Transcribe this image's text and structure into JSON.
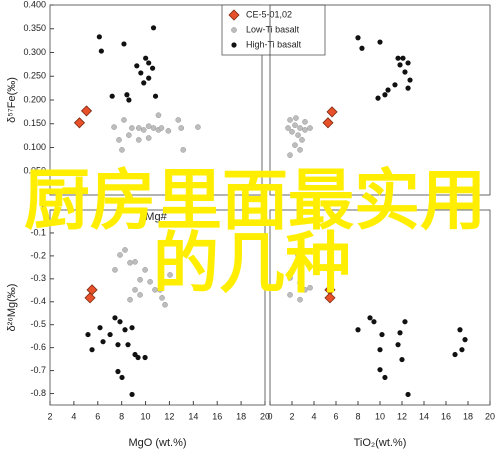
{
  "chart_data": [
    {
      "type": "scatter",
      "ylabel": "δ⁵⁷Fe(‰)",
      "xlabel": "Mg#",
      "xlim": [
        2,
        20
      ],
      "ylim": [
        0,
        0.4
      ],
      "yticks": [
        {
          "value": 0.4,
          "label": "0.400"
        },
        {
          "value": 0.35,
          "label": "0.350"
        },
        {
          "value": 0.3,
          "label": "0.300"
        },
        {
          "value": 0.25,
          "label": "0.250"
        },
        {
          "value": 0.2,
          "label": "0.200"
        },
        {
          "value": 0.15,
          "label": "0.150"
        },
        {
          "value": 0.1,
          "label": "0.100"
        },
        {
          "value": 0.05,
          "label": "0.050"
        }
      ],
      "legend": "upper right",
      "series": [
        {
          "name": "CE-5-01,02",
          "color": "#e8502a",
          "marker": "diamond",
          "x": [
            5.1,
            4.5
          ],
          "values": [
            0.177,
            0.152
          ]
        },
        {
          "name": "Low-Ti basalt",
          "color": "#bdbdbd",
          "marker": "circle",
          "x": [
            7.44,
            8.28,
            8.95,
            9.54,
            9.96,
            10.38,
            10.79,
            11.21,
            11.46,
            12.05,
            12.89,
            13.14,
            14.56,
            13.31,
            7.86,
            9.54,
            8.11,
            11.21,
            8.7,
            10.38
          ],
          "values": [
            0.143,
            0.158,
            0.141,
            0.141,
            0.137,
            0.145,
            0.141,
            0.137,
            0.141,
            0.135,
            0.158,
            0.141,
            0.143,
            0.095,
            0.116,
            0.116,
            0.095,
            0.168,
            0.126,
            0.12
          ]
        },
        {
          "name": "High-Ti basalt",
          "color": "#111111",
          "marker": "circle",
          "x": [
            6.19,
            6.36,
            8.28,
            10.79,
            10.12,
            10.38,
            9.37,
            9.71,
            10.38,
            10.71,
            9.96,
            8.53,
            8.7,
            10.96,
            7.28
          ],
          "values": [
            0.333,
            0.303,
            0.318,
            0.352,
            0.288,
            0.278,
            0.272,
            0.257,
            0.246,
            0.267,
            0.236,
            0.211,
            0.2,
            0.208,
            0.208
          ]
        }
      ]
    },
    {
      "type": "scatter",
      "xlim": [
        0,
        20
      ],
      "ylim": [
        0,
        0.4
      ],
      "series": [
        {
          "color": "#e8502a",
          "marker": "diamond",
          "x": [
            5.64,
            5.27
          ],
          "values": [
            0.175,
            0.152
          ]
        },
        {
          "color": "#bdbdbd",
          "marker": "circle",
          "x": [
            1.82,
            2.27,
            2.73,
            3.18,
            2.0,
            2.55,
            1.64,
            2.91,
            2.27,
            2.73,
            1.82,
            3.64,
            2.36,
            3.18
          ],
          "values": [
            0.158,
            0.147,
            0.141,
            0.137,
            0.133,
            0.126,
            0.141,
            0.116,
            0.105,
            0.095,
            0.084,
            0.141,
            0.162,
            0.154
          ]
        },
        {
          "color": "#111111",
          "marker": "circle",
          "x": [
            8.0,
            8.36,
            10.0,
            11.64,
            12.09,
            11.82,
            12.55,
            12.27,
            12.73,
            12.55,
            11.36,
            10.73,
            10.45,
            9.82
          ],
          "values": [
            0.331,
            0.309,
            0.322,
            0.288,
            0.288,
            0.274,
            0.278,
            0.259,
            0.242,
            0.225,
            0.232,
            0.221,
            0.211,
            0.204
          ]
        }
      ]
    },
    {
      "type": "scatter",
      "ylabel": "δ²⁶Mg(‰)",
      "xlabel": "MgO (wt.%)",
      "xlim": [
        2,
        20
      ],
      "ylim": [
        -0.85,
        0
      ],
      "xticks": [
        2,
        4,
        6,
        8,
        10,
        12,
        14,
        16,
        18,
        20
      ],
      "yticks": [
        0,
        -0.1,
        -0.2,
        -0.3,
        -0.4,
        -0.5,
        -0.6,
        -0.7,
        -0.8
      ],
      "series": [
        {
          "color": "#e8502a",
          "marker": "diamond",
          "x": [
            5.52,
            5.35
          ],
          "values": [
            -0.348,
            -0.383
          ]
        },
        {
          "color": "#bdbdbd",
          "marker": "circle",
          "x": [
            7.86,
            8.28,
            8.7,
            9.12,
            9.54,
            9.96,
            10.38,
            10.79,
            11.21,
            11.38,
            11.63,
            12.05,
            8.7,
            9.54,
            7.44,
            9.12
          ],
          "values": [
            -0.196,
            -0.174,
            -0.23,
            -0.348,
            -0.304,
            -0.261,
            -0.313,
            -0.348,
            -0.348,
            -0.383,
            -0.413,
            -0.283,
            -0.391,
            -0.37,
            -0.261,
            -0.226
          ]
        },
        {
          "color": "#111111",
          "marker": "circle",
          "x": [
            5.18,
            5.52,
            6.19,
            6.44,
            7.03,
            7.44,
            7.86,
            7.69,
            8.28,
            8.87,
            8.53,
            9.12,
            9.37,
            9.96,
            7.69,
            8.03,
            8.87
          ],
          "values": [
            -0.543,
            -0.609,
            -0.513,
            -0.574,
            -0.543,
            -0.47,
            -0.487,
            -0.587,
            -0.522,
            -0.513,
            -0.587,
            -0.63,
            -0.643,
            -0.643,
            -0.704,
            -0.73,
            -0.804
          ]
        }
      ]
    },
    {
      "type": "scatter",
      "xlabel": "TiO₂(wt.%)",
      "xlim": [
        0,
        20
      ],
      "ylim": [
        -0.85,
        0
      ],
      "xticks": [
        0,
        2,
        4,
        6,
        8,
        10,
        12,
        14,
        16,
        18,
        20
      ],
      "series": [
        {
          "color": "#e8502a",
          "marker": "diamond",
          "x": [
            5.45,
            5.45
          ],
          "values": [
            -0.348,
            -0.383
          ]
        },
        {
          "color": "#bdbdbd",
          "marker": "circle",
          "x": [
            1.82,
            2.27,
            2.73,
            3.18,
            2.73,
            1.82,
            2.55,
            3.64,
            3.0
          ],
          "values": [
            -0.296,
            -0.239,
            -0.317,
            -0.348,
            -0.391,
            -0.37,
            -0.196,
            -0.339,
            -0.217
          ]
        },
        {
          "color": "#111111",
          "marker": "circle",
          "x": [
            8.0,
            9.09,
            9.45,
            10.18,
            10.0,
            11.64,
            12.27,
            12.0,
            10.0,
            10.45,
            12.55,
            17.27,
            17.73,
            16.82,
            17.45,
            11.82
          ],
          "values": [
            -0.522,
            -0.47,
            -0.487,
            -0.543,
            -0.609,
            -0.587,
            -0.487,
            -0.652,
            -0.696,
            -0.73,
            -0.804,
            -0.522,
            -0.565,
            -0.63,
            -0.609,
            -0.535
          ]
        }
      ]
    }
  ],
  "overlay_text": [
    "厨房里面最实用",
    "的几种"
  ]
}
